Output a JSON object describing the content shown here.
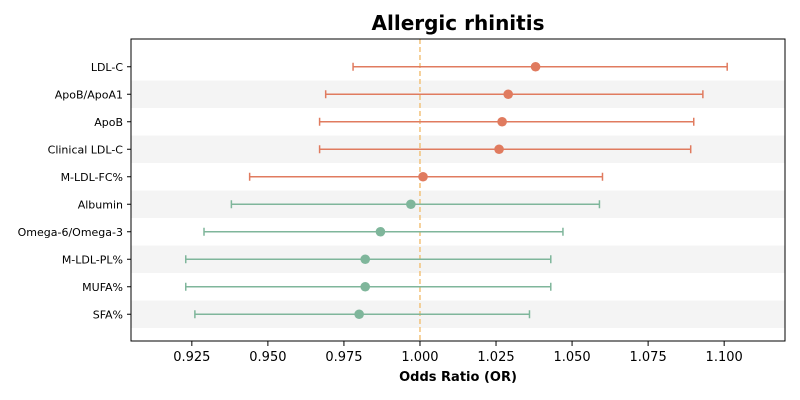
{
  "chart_data": {
    "type": "forest",
    "title": "Allergic rhinitis",
    "xlabel": "Odds Ratio (OR)",
    "xlim": [
      0.905,
      1.12
    ],
    "xticks": [
      "0.925",
      "0.950",
      "0.975",
      "1.000",
      "1.025",
      "1.050",
      "1.075",
      "1.100"
    ],
    "reference_line": 1.0,
    "colors": {
      "risk": "#e07b5f",
      "protective": "#7fb69b",
      "reference": "#f2c27a",
      "band": "#f4f4f4"
    },
    "rows": [
      {
        "label": "LDL-C",
        "or": 1.038,
        "lo": 0.978,
        "hi": 1.101,
        "group": "risk"
      },
      {
        "label": "ApoB/ApoA1",
        "or": 1.029,
        "lo": 0.969,
        "hi": 1.093,
        "group": "risk"
      },
      {
        "label": "ApoB",
        "or": 1.027,
        "lo": 0.967,
        "hi": 1.09,
        "group": "risk"
      },
      {
        "label": "Clinical LDL-C",
        "or": 1.026,
        "lo": 0.967,
        "hi": 1.089,
        "group": "risk"
      },
      {
        "label": "M-LDL-FC%",
        "or": 1.001,
        "lo": 0.944,
        "hi": 1.06,
        "group": "risk"
      },
      {
        "label": "Albumin",
        "or": 0.997,
        "lo": 0.938,
        "hi": 1.059,
        "group": "protective"
      },
      {
        "label": "Omega-6/Omega-3",
        "or": 0.987,
        "lo": 0.929,
        "hi": 1.047,
        "group": "protective"
      },
      {
        "label": "M-LDL-PL%",
        "or": 0.982,
        "lo": 0.923,
        "hi": 1.043,
        "group": "protective"
      },
      {
        "label": "MUFA%",
        "or": 0.982,
        "lo": 0.923,
        "hi": 1.043,
        "group": "protective"
      },
      {
        "label": "SFA%",
        "or": 0.98,
        "lo": 0.926,
        "hi": 1.036,
        "group": "protective"
      }
    ]
  }
}
